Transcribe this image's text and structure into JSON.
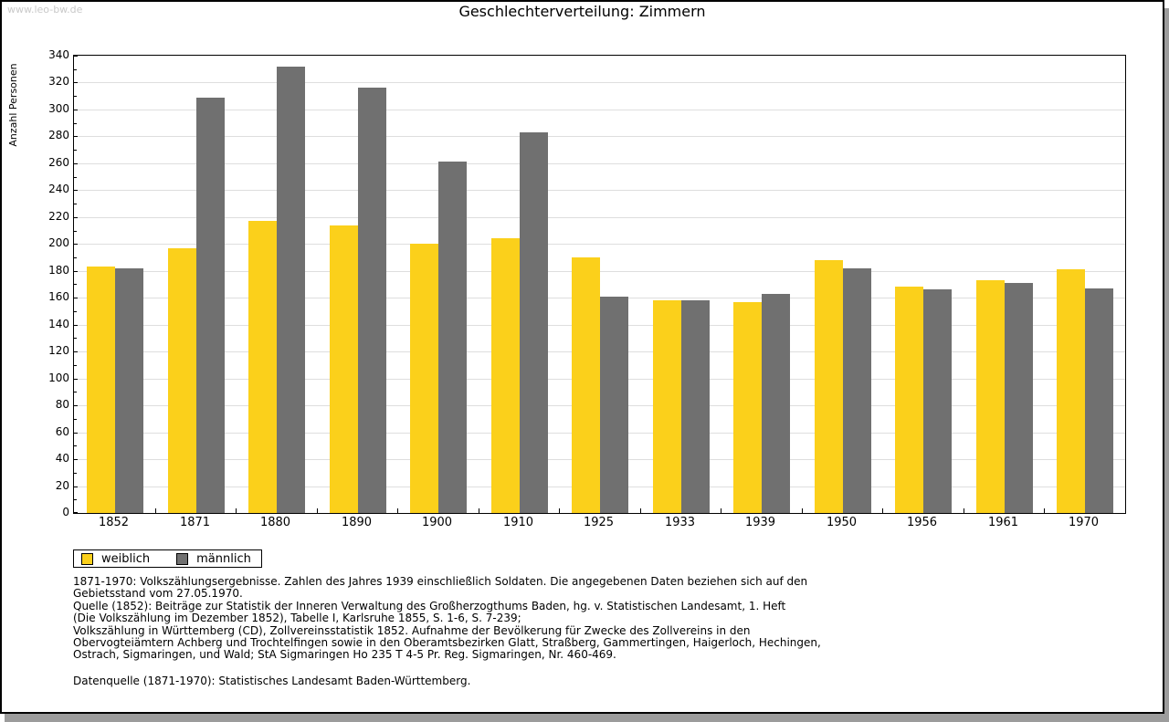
{
  "page": {
    "watermark": "www.leo-bw.de",
    "title": "Geschlechterverteilung: Zimmern"
  },
  "chart_data": {
    "type": "bar",
    "title": "Geschlechterverteilung: Zimmern",
    "xlabel": "",
    "ylabel": "Anzahl Personen",
    "ylim": [
      0,
      340
    ],
    "ytick_step": 20,
    "ytick_minor_step": 10,
    "grid": true,
    "legend_position": "bottom-left",
    "categories": [
      "1852",
      "1871",
      "1880",
      "1890",
      "1900",
      "1910",
      "1925",
      "1933",
      "1939",
      "1950",
      "1956",
      "1961",
      "1970"
    ],
    "series": [
      {
        "name": "weiblich",
        "color": "#FBD01B",
        "values": [
          183,
          197,
          217,
          214,
          200,
          204,
          190,
          158,
          157,
          188,
          168,
          173,
          181
        ]
      },
      {
        "name": "männlich",
        "color": "#707070",
        "values": [
          182,
          309,
          332,
          316,
          261,
          283,
          161,
          158,
          163,
          182,
          166,
          171,
          167
        ]
      }
    ]
  },
  "footer": {
    "source_lines": [
      "1871-1970: Volkszählungsergebnisse. Zahlen des Jahres 1939 einschließlich Soldaten. Die angegebenen Daten beziehen sich auf den",
      "Gebietsstand vom 27.05.1970.",
      "Quelle (1852): Beiträge zur Statistik der Inneren Verwaltung des Großherzogthums Baden, hg. v. Statistischen Landesamt, 1. Heft",
      "(Die Volkszählung im Dezember 1852), Tabelle I, Karlsruhe 1855, S. 1-6, S. 7-239;",
      "Volkszählung in Württemberg (CD), Zollvereinsstatistik 1852. Aufnahme der Bevölkerung für Zwecke des Zollvereins in den",
      "Obervogteiämtern Achberg und Trochtelfingen sowie in den Oberamtsbezirken Glatt, Straßberg, Gammertingen, Haigerloch, Hechingen,",
      "Ostrach, Sigmaringen, und Wald; StA Sigmaringen Ho 235 T 4-5 Pr. Reg. Sigmaringen, Nr. 460-469."
    ],
    "datasource": "Datenquelle (1871-1970): Statistisches Landesamt Baden-Württemberg."
  },
  "colors": {
    "weiblich": "#FBD01B",
    "maennlich": "#707070",
    "gridline": "#DEDEDE",
    "watermark": "#C9C9C9",
    "frame_shadow": "#9C9C9C"
  }
}
